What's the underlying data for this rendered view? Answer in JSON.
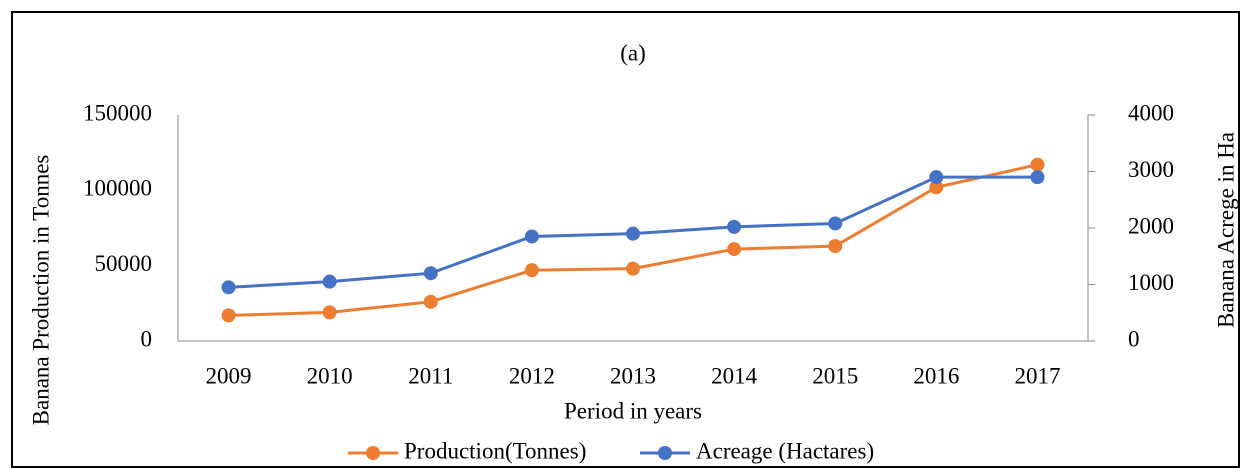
{
  "chart_data": {
    "type": "line",
    "title": "(a)",
    "x_label": "Period in years",
    "y_label": "Banana Production in Tonnes",
    "y2_label": "Banana Acrege in Ha",
    "categories": [
      "2009",
      "2010",
      "2011",
      "2012",
      "2013",
      "2014",
      "2015",
      "2016",
      "2017"
    ],
    "series": [
      {
        "name": "Production(Tonnes)",
        "color": "#ed7d31",
        "values": [
          17000,
          19000,
          26000,
          47000,
          48000,
          61000,
          63000,
          102000,
          117000
        ]
      },
      {
        "name": "Acreage (Hactares)",
        "color": "#4472c4",
        "axis": "y2",
        "values": [
          950,
          1050,
          1200,
          1850,
          1900,
          2020,
          2080,
          2900,
          2900
        ]
      }
    ],
    "ylim": [
      0,
      150000
    ],
    "yticks": [
      0,
      50000,
      100000,
      150000
    ],
    "y2lim": [
      0,
      4000
    ],
    "y2ticks": [
      0,
      1000,
      2000,
      3000,
      4000
    ],
    "grid": false,
    "legend": "bottom"
  }
}
